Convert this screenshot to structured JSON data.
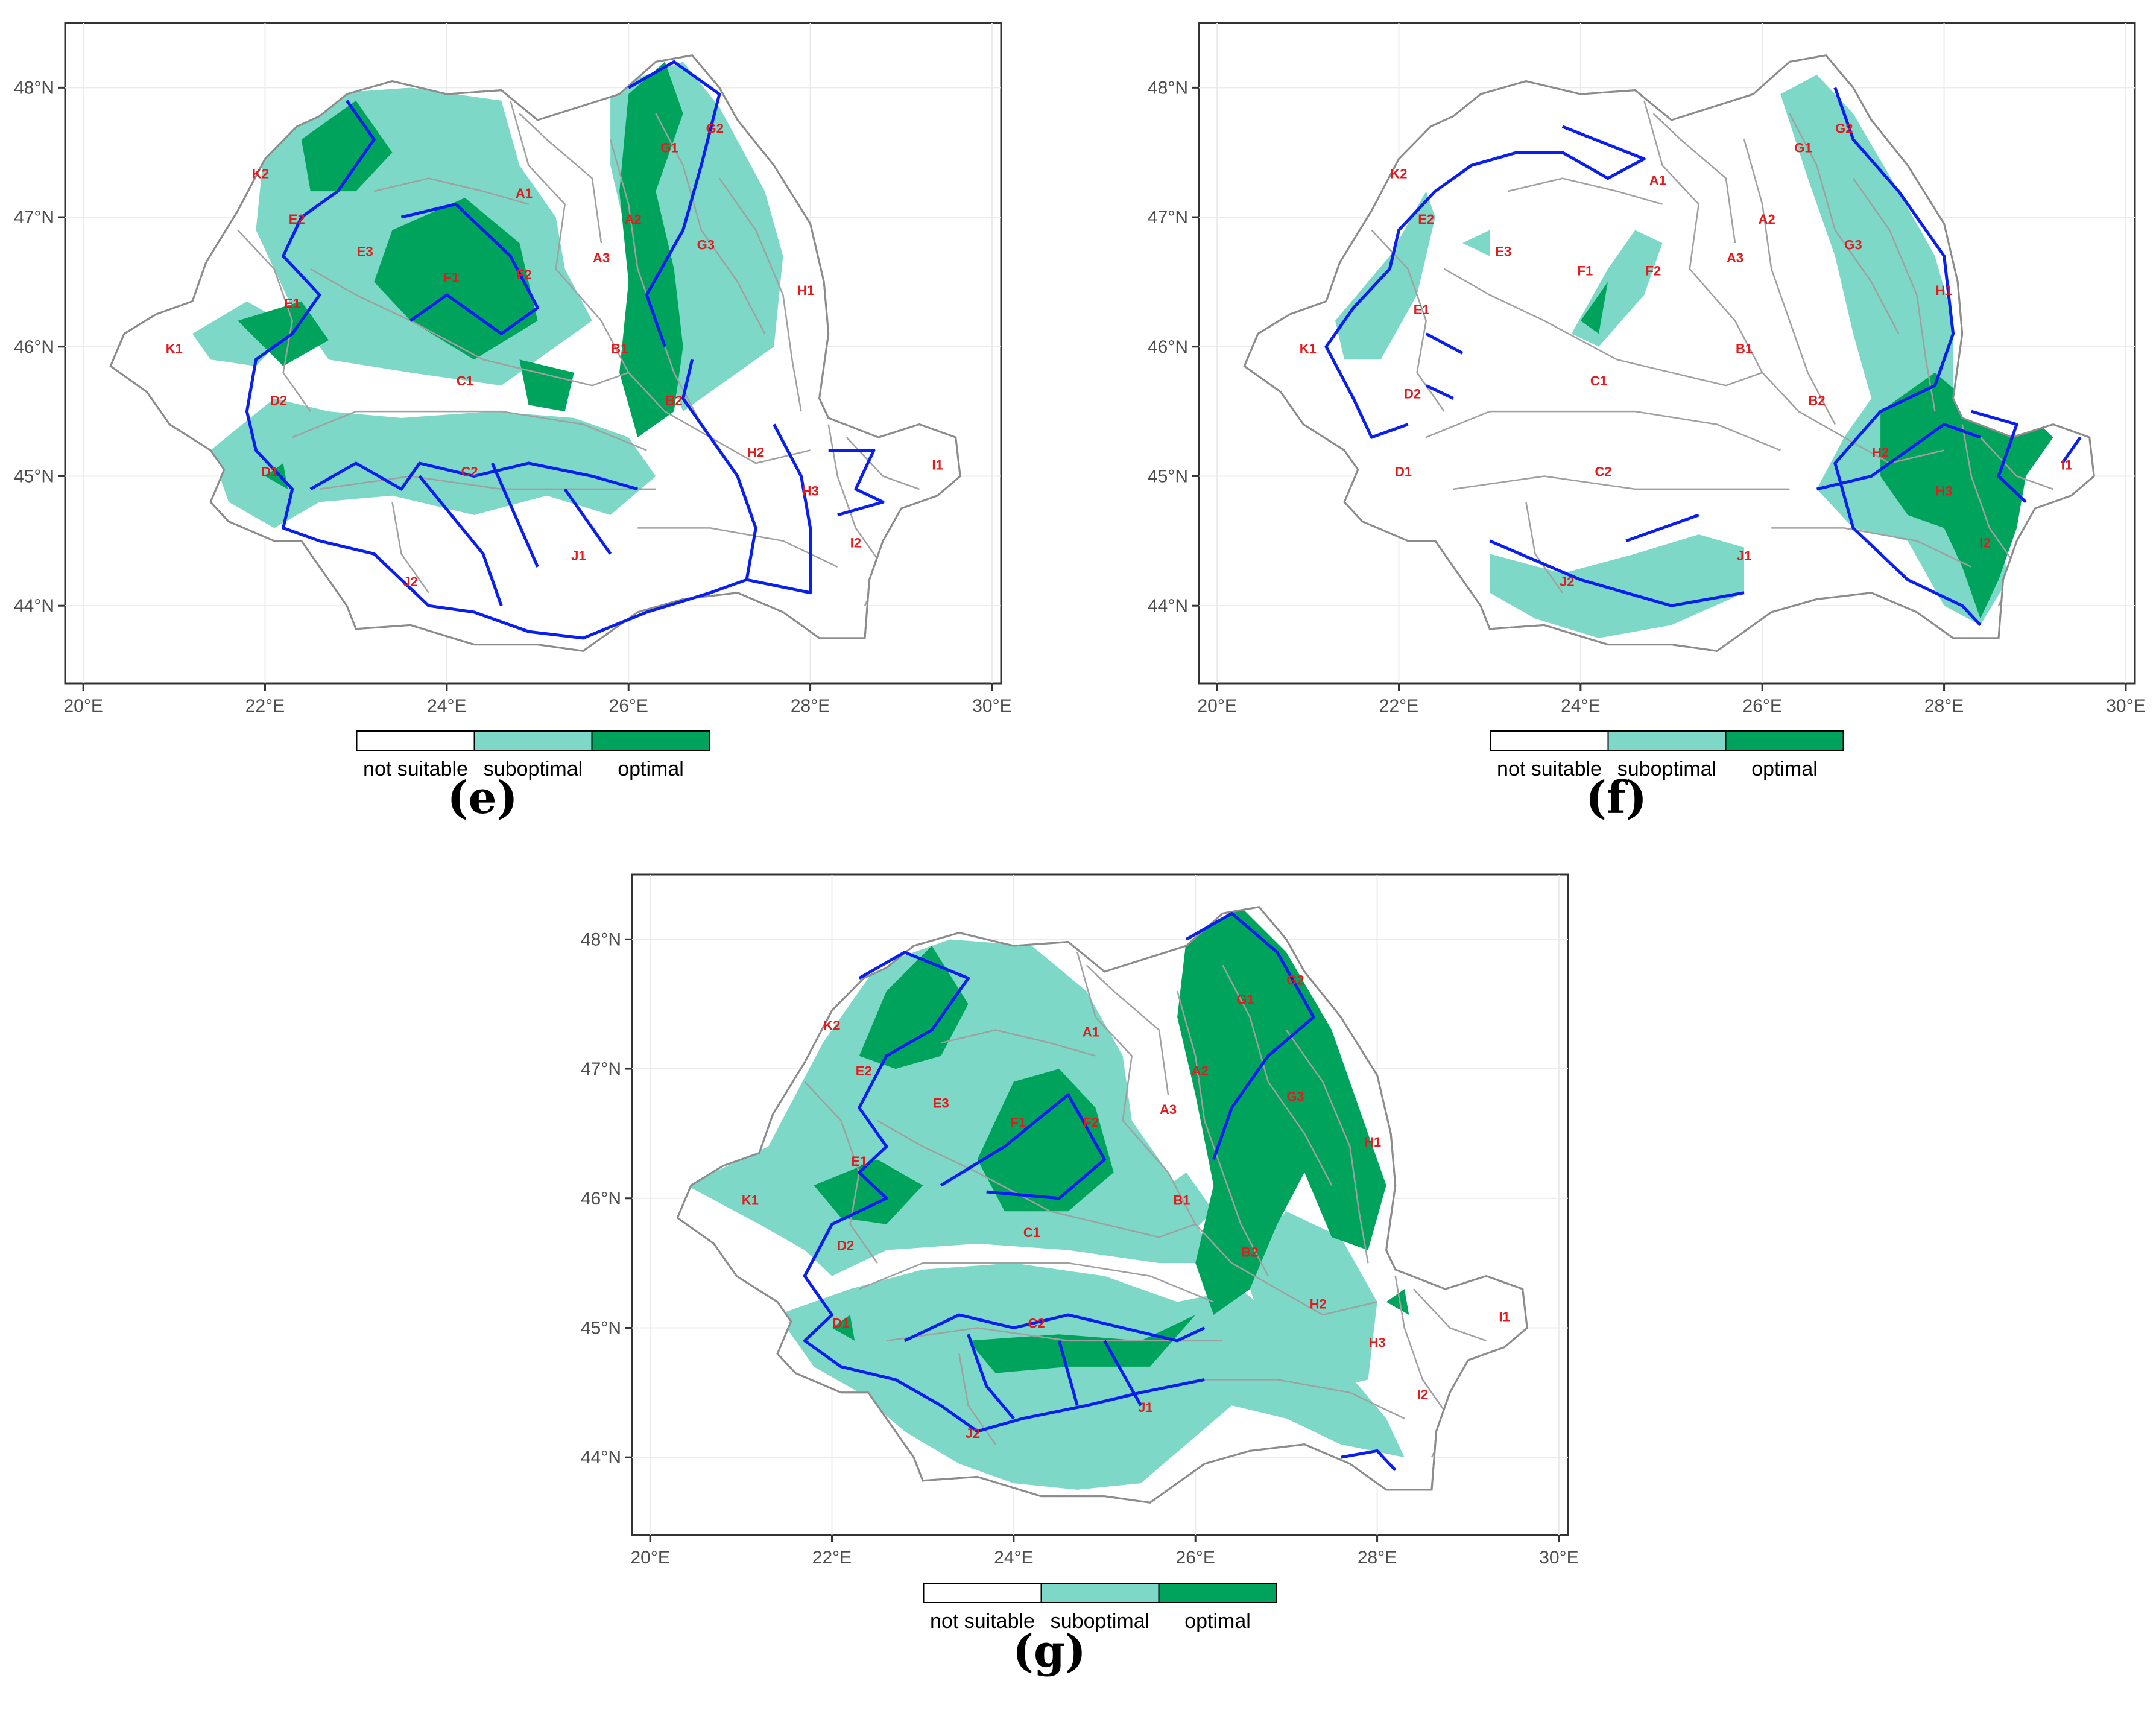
{
  "panels": [
    {
      "id": "e",
      "label": "(e)",
      "regions": [
        "A1",
        "A2",
        "A3",
        "B1",
        "B2",
        "C1",
        "C2",
        "D1",
        "D2",
        "E1",
        "E2",
        "E3",
        "F1",
        "F2",
        "G1",
        "G2",
        "G3",
        "H1",
        "H2",
        "H3",
        "I1",
        "I2",
        "J1",
        "J2",
        "K1",
        "K2"
      ],
      "suitability_classes_present": [
        "not suitable",
        "suboptimal",
        "optimal"
      ]
    },
    {
      "id": "f",
      "label": "(f)",
      "regions": [
        "A1",
        "A2",
        "A3",
        "B1",
        "B2",
        "C1",
        "C2",
        "D1",
        "D2",
        "E1",
        "E2",
        "E3",
        "F1",
        "F2",
        "G1",
        "G2",
        "G3",
        "H1",
        "H2",
        "H3",
        "I1",
        "I2",
        "J1",
        "J2",
        "K1",
        "K2"
      ],
      "suitability_classes_present": [
        "not suitable",
        "suboptimal",
        "optimal"
      ]
    },
    {
      "id": "g",
      "label": "(g)",
      "regions": [
        "A1",
        "A2",
        "A3",
        "B1",
        "B2",
        "C1",
        "C2",
        "D1",
        "D2",
        "E1",
        "E2",
        "E3",
        "F1",
        "F2",
        "G1",
        "G2",
        "G3",
        "H1",
        "H2",
        "H3",
        "I1",
        "I2",
        "J1",
        "J2",
        "K1",
        "K2"
      ],
      "suitability_classes_present": [
        "not suitable",
        "suboptimal",
        "optimal"
      ]
    }
  ],
  "axes": {
    "x_ticks": [
      "20°E",
      "22°E",
      "24°E",
      "26°E",
      "28°E",
      "30°E"
    ],
    "y_ticks": [
      "44°N",
      "45°N",
      "46°N",
      "47°N",
      "48°N"
    ]
  },
  "legend": {
    "items": [
      {
        "label": "not suitable",
        "color": "#ffffff"
      },
      {
        "label": "suboptimal",
        "color": "#7dd8c7"
      },
      {
        "label": "optimal",
        "color": "#00a35c"
      }
    ]
  },
  "colors": {
    "suboptimal": "#7dd8c7",
    "optimal": "#00a35c",
    "boundary": "#0a1ef0",
    "region_label": "#e41a1c"
  }
}
